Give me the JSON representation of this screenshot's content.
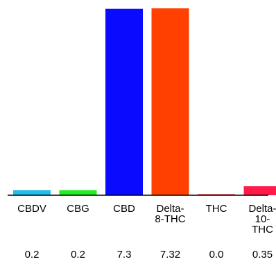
{
  "chart_data": {
    "type": "bar",
    "title": "",
    "xlabel": "",
    "ylabel": "",
    "grid": false,
    "legend": "none",
    "ylim": [
      0,
      7.32
    ],
    "categories": [
      {
        "label_lines": [
          "CBDV"
        ],
        "value_label": "0.2"
      },
      {
        "label_lines": [
          "CBG"
        ],
        "value_label": "0.2"
      },
      {
        "label_lines": [
          "CBD"
        ],
        "value_label": "7.3"
      },
      {
        "label_lines": [
          "Delta-",
          "8-THC"
        ],
        "value_label": "7.32"
      },
      {
        "label_lines": [
          "THC"
        ],
        "value_label": "0.0"
      },
      {
        "label_lines": [
          "Delta-",
          "10-",
          "THC"
        ],
        "value_label": "0.35"
      }
    ],
    "values": [
      0.2,
      0.2,
      7.3,
      7.32,
      0.0,
      0.35
    ],
    "colors": [
      "#1fbfea",
      "#22ee22",
      "#0a0aff",
      "#ff4000",
      "#ff3344",
      "#ff1a4a"
    ]
  }
}
